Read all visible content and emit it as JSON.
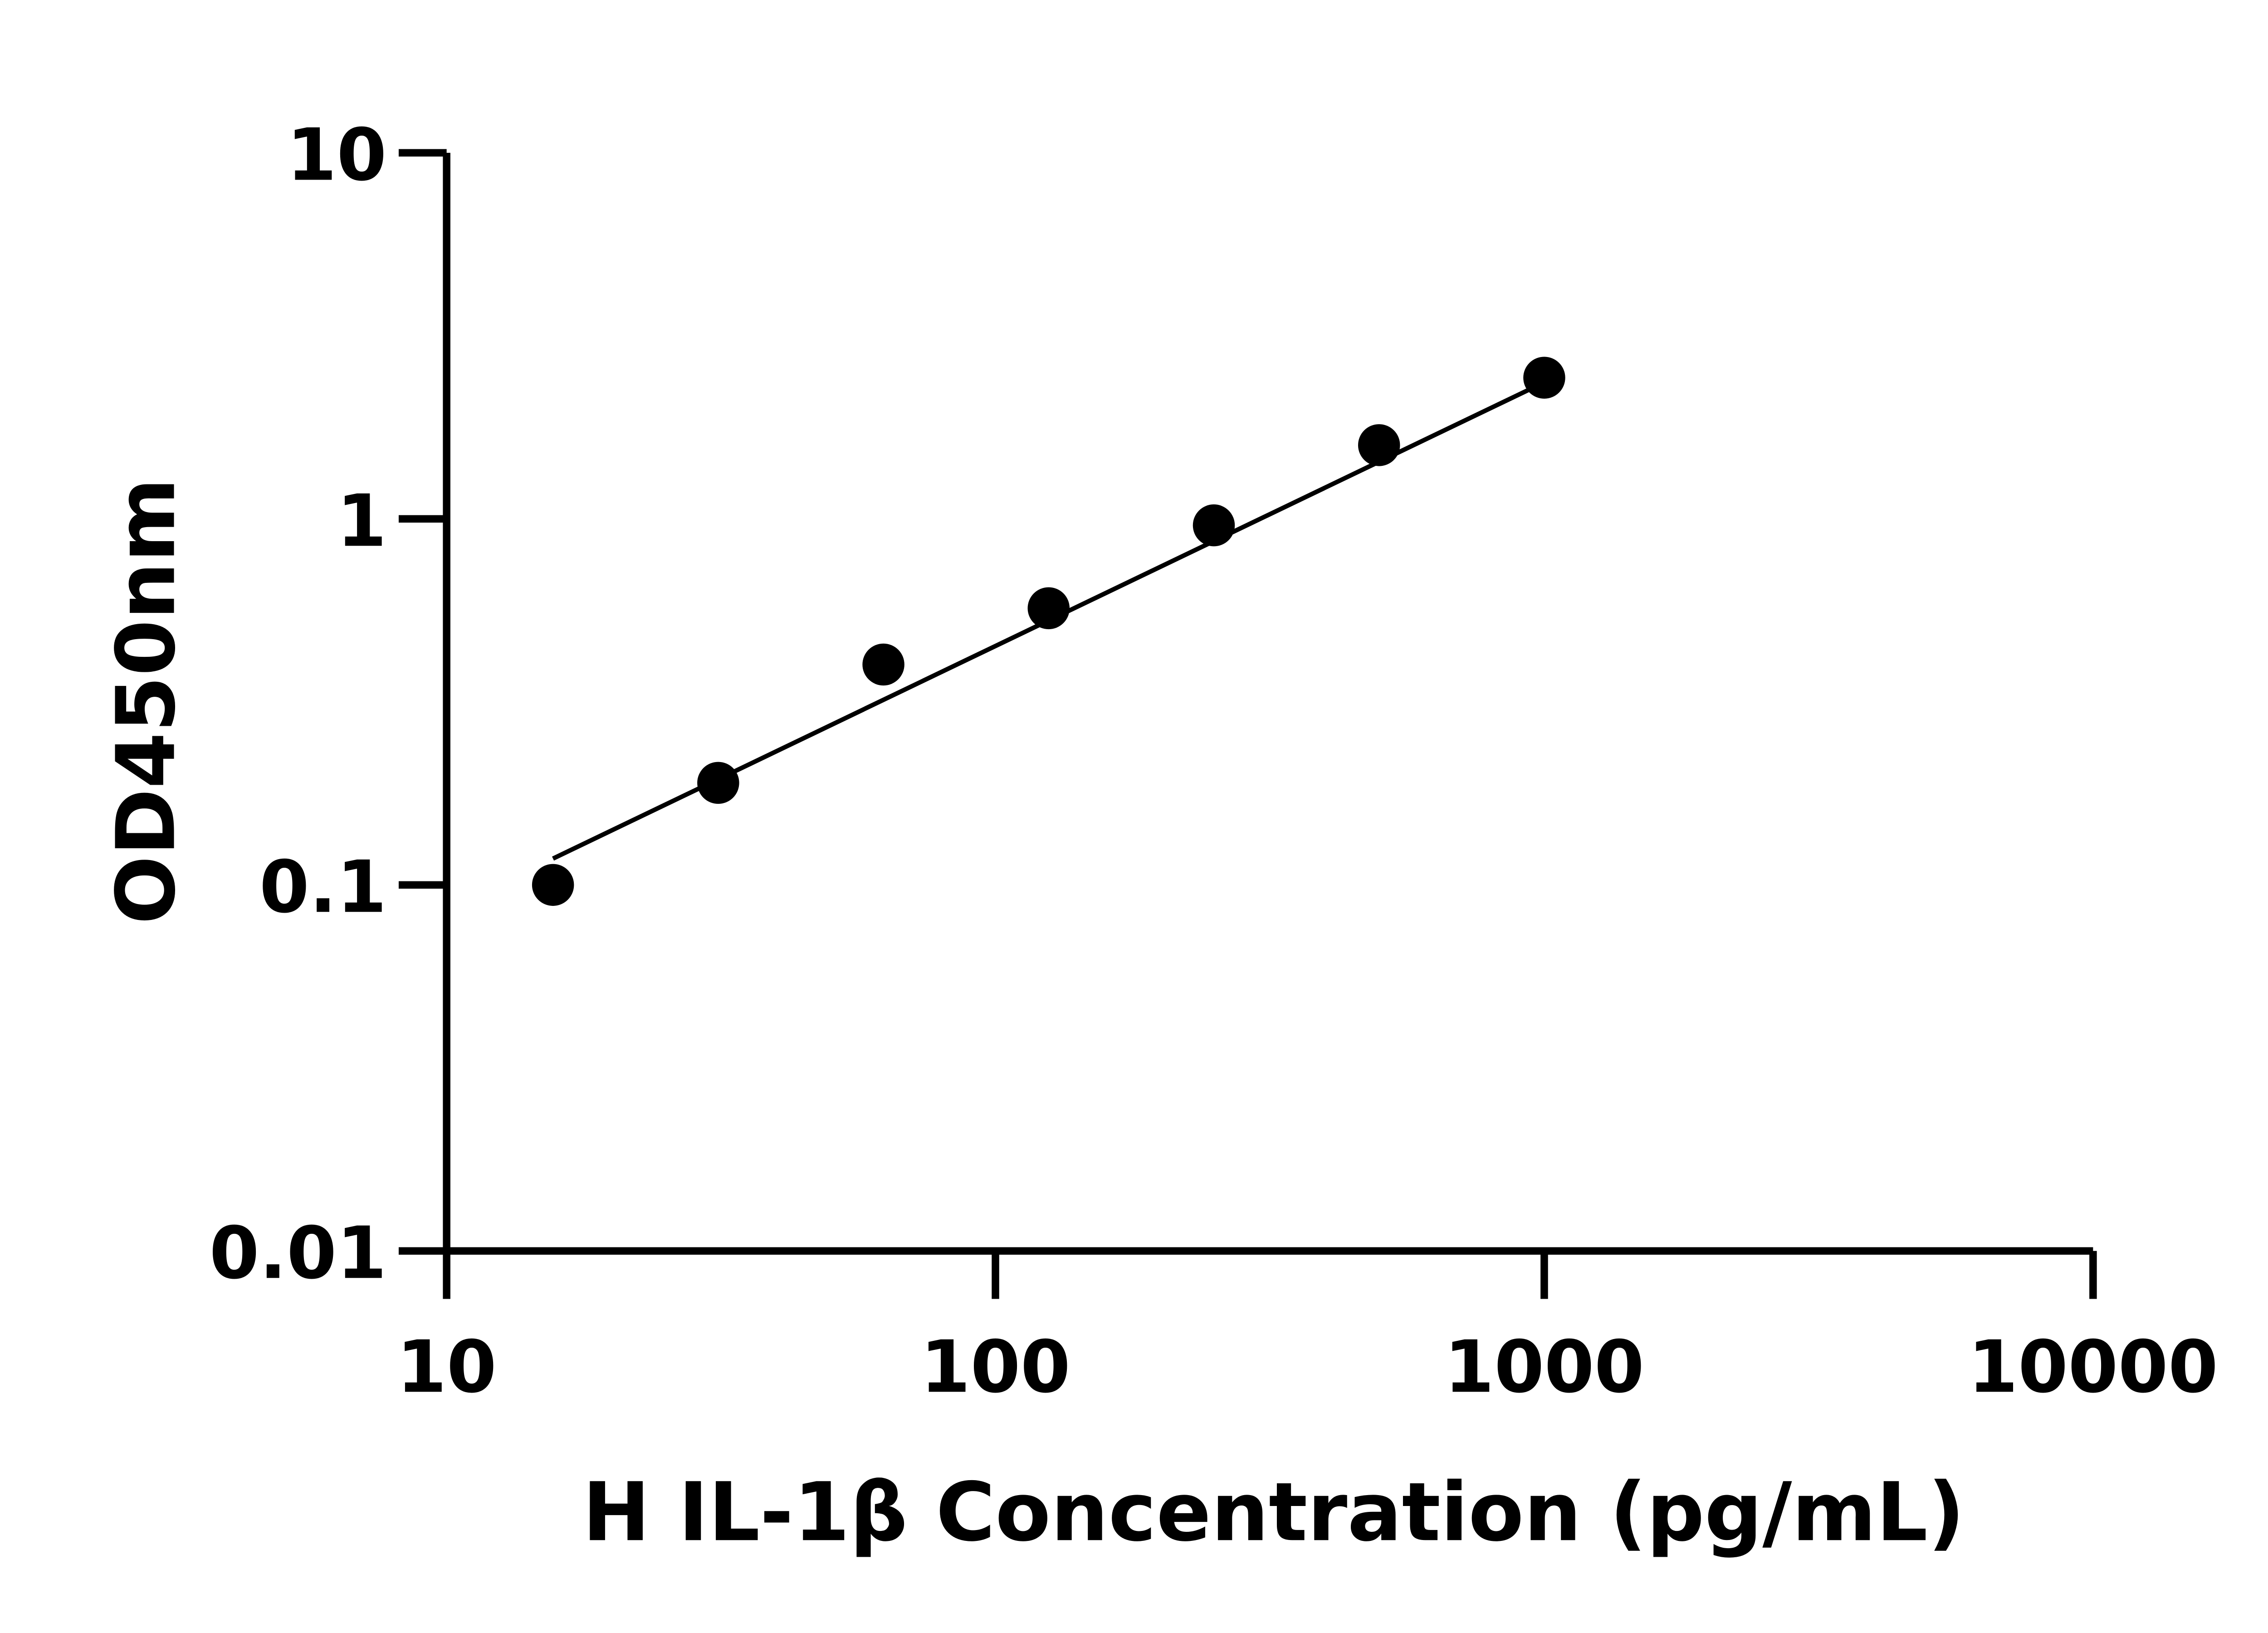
{
  "chart_data": {
    "type": "scatter",
    "xlabel": "H IL-1β Concentration (pg/mL)",
    "ylabel": "OD450nm",
    "x_scale": "log",
    "y_scale": "log",
    "xlim": [
      10,
      10000
    ],
    "ylim": [
      0.01,
      10
    ],
    "x_ticks": [
      "10",
      "100",
      "1000",
      "10000"
    ],
    "y_ticks": [
      "0.01",
      "0.1",
      "1",
      "10"
    ],
    "grid": false,
    "points": {
      "x": [
        15.625,
        31.25,
        62.5,
        125,
        250,
        500,
        1000
      ],
      "y": [
        0.1,
        0.19,
        0.4,
        0.57,
        0.96,
        1.59,
        2.43
      ]
    },
    "fit_line": {
      "x": [
        15.625,
        1000
      ],
      "y": [
        0.118,
        2.36
      ]
    },
    "colors": {
      "marker": "#000000",
      "line": "#000000",
      "axis": "#000000"
    }
  }
}
